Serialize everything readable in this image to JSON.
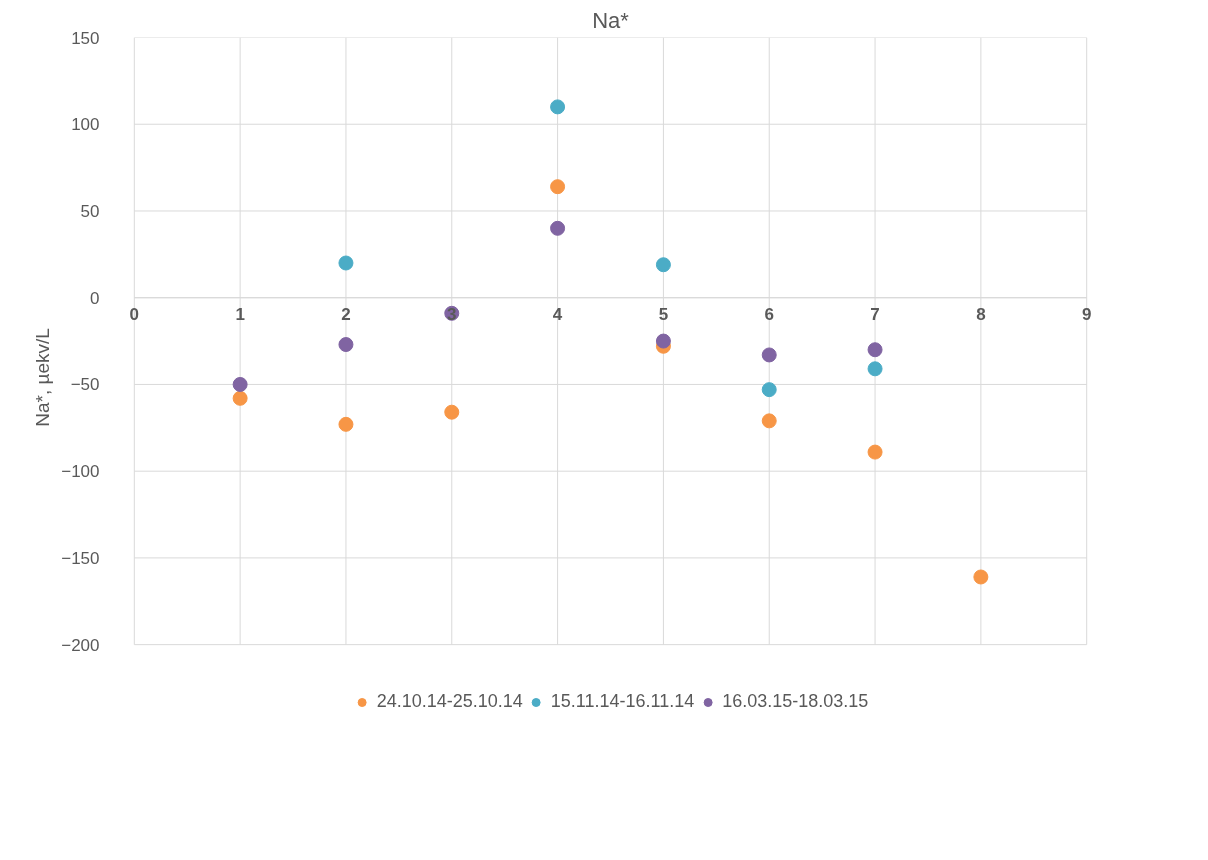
{
  "chart_data": {
    "type": "scatter",
    "title": "Na*",
    "ylabel": "Na*, µekv/L",
    "x": [
      1,
      2,
      3,
      4,
      5,
      6,
      7,
      8
    ],
    "series": [
      {
        "name": "24.10.14-25.10.14",
        "color": "#f79646",
        "values": [
          -58,
          -73,
          -66,
          64,
          -28,
          -71,
          -89,
          -161
        ]
      },
      {
        "name": "15.11.14-16.11.14",
        "color": "#4bacc6",
        "values": [
          null,
          20,
          null,
          110,
          19,
          -53,
          -41,
          null
        ]
      },
      {
        "name": "16.03.15-18.03.15",
        "color": "#8064a2",
        "values": [
          -50,
          -27,
          -9,
          40,
          -25,
          -33,
          -30,
          null
        ]
      }
    ],
    "xlim": [
      0,
      9
    ],
    "xticks": [
      0,
      1,
      2,
      3,
      4,
      5,
      6,
      7,
      8,
      9
    ],
    "ylim": [
      -200,
      150
    ],
    "yticks": [
      -200,
      -150,
      -100,
      -50,
      0,
      50,
      100,
      150
    ],
    "grid": true,
    "legend": "bottom",
    "marker": "circle"
  }
}
